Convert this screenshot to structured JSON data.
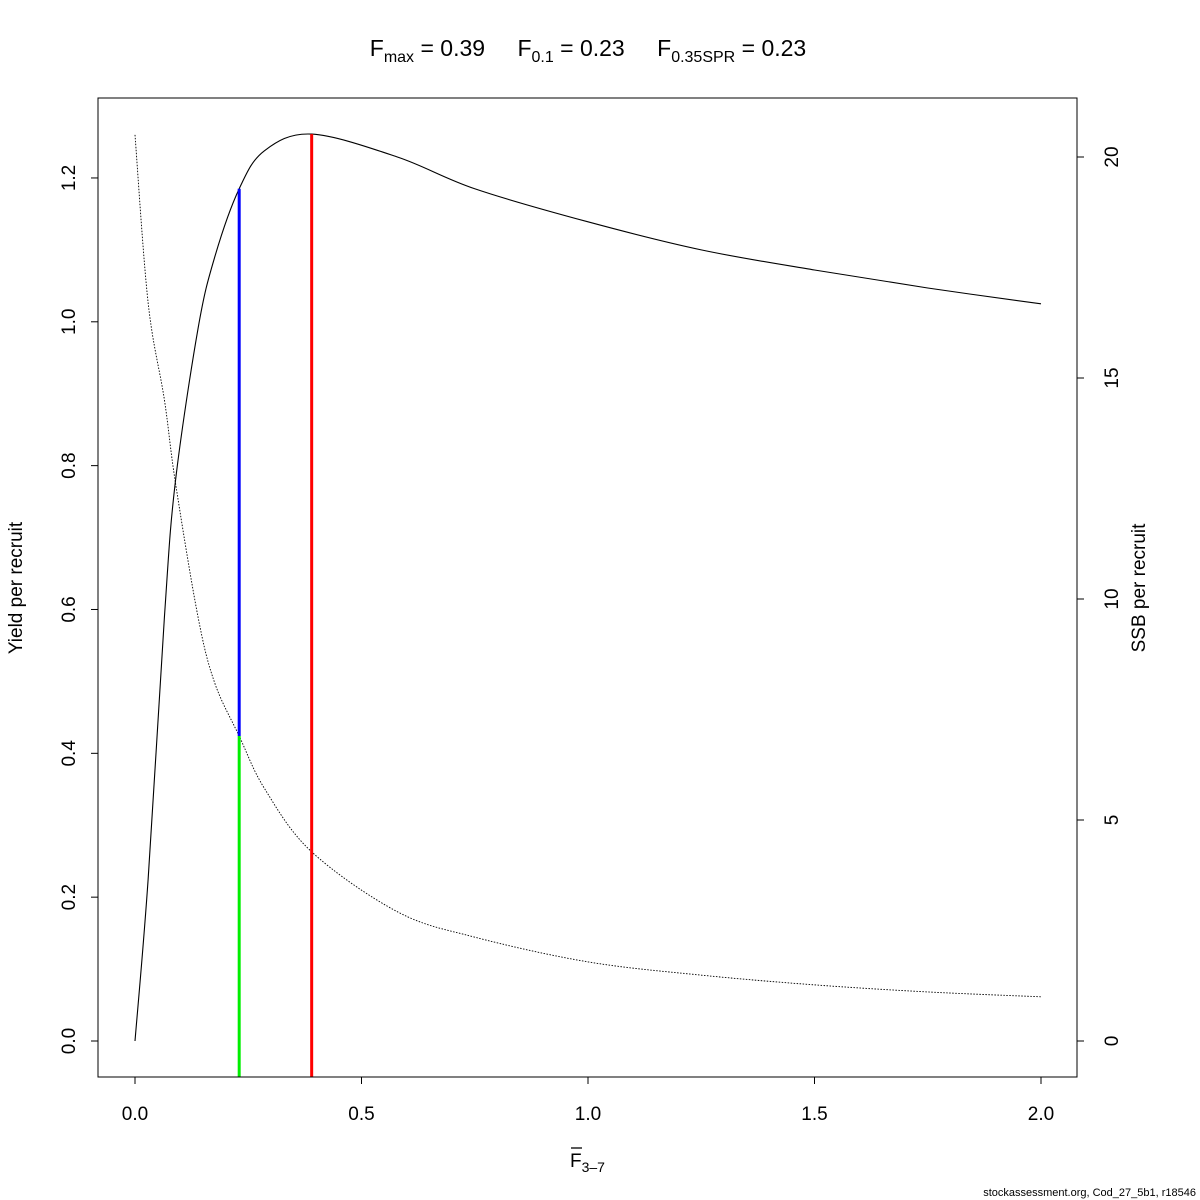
{
  "chart_data": {
    "type": "line",
    "title": {
      "parts": [
        {
          "main": "F",
          "sub": "max",
          "rest": " = 0.39"
        },
        {
          "main": "F",
          "sub": "0.1",
          "rest": " = 0.23"
        },
        {
          "main": "F",
          "sub": "0.35SPR",
          "rest": " = 0.23"
        }
      ]
    },
    "xlabel": {
      "main": "F",
      "sub": "3–7",
      "overline": true
    },
    "ylabel_left": "Yield per recruit",
    "ylabel_right": "SSB per recruit",
    "xlim": [
      0,
      2
    ],
    "ylim_left": [
      0,
      1.26
    ],
    "ylim_right": [
      0,
      20.5
    ],
    "x_ticks": [
      "0.0",
      "0.5",
      "1.0",
      "1.5",
      "2.0"
    ],
    "y_left_ticks": [
      "0.0",
      "0.2",
      "0.4",
      "0.6",
      "0.8",
      "1.0",
      "1.2"
    ],
    "y_right_ticks": [
      "0",
      "5",
      "10",
      "15",
      "20"
    ],
    "grid": false,
    "series": [
      {
        "axis": "left",
        "style": "solid",
        "color": "#000000",
        "x": [
          0,
          0.029,
          0.065,
          0.089,
          0.139,
          0.176,
          0.23,
          0.286,
          0.39,
          0.58,
          0.75,
          1.0,
          1.25,
          1.5,
          1.75,
          2.0
        ],
        "y": [
          0,
          0.225,
          0.59,
          0.777,
          0.99,
          1.09,
          1.185,
          1.238,
          1.261,
          1.229,
          1.185,
          1.139,
          1.1,
          1.072,
          1.047,
          1.025
        ]
      },
      {
        "axis": "right",
        "style": "dotted",
        "color": "#000000",
        "x": [
          0,
          0.029,
          0.065,
          0.089,
          0.139,
          0.176,
          0.23,
          0.286,
          0.39,
          0.58,
          0.75,
          1.0,
          1.25,
          1.5,
          1.75,
          2.0
        ],
        "y": [
          20.5,
          16.7,
          14.5,
          12.65,
          9.6,
          8.1,
          6.9,
          5.71,
          4.28,
          2.92,
          2.35,
          1.79,
          1.49,
          1.27,
          1.11,
          1.0
        ]
      }
    ],
    "reference_lines": [
      {
        "name": "Fmax",
        "x": 0.39,
        "to_axis": "left",
        "to_value": 1.261,
        "color": "#ff0000"
      },
      {
        "name": "F0.1",
        "x": 0.23,
        "from_axis": "right",
        "from_value": 6.9,
        "to_axis": "left",
        "to_value": 1.185,
        "color": "#0000ff"
      },
      {
        "name": "F0.35SPR",
        "x": 0.23,
        "to_axis": "right",
        "to_value": 6.9,
        "color": "#00ee00"
      }
    ]
  },
  "footer": "stockassessment.org, Cod_27_5b1, r18546"
}
